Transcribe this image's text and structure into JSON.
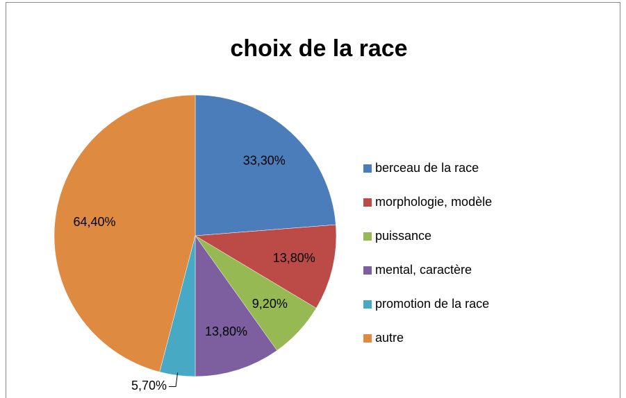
{
  "chart_data": {
    "type": "pie",
    "title": "choix de la race",
    "categories": [
      "berceau de la race",
      "morphologie, modèle",
      "puissance",
      "mental, caractère",
      "promotion de la race",
      "autre"
    ],
    "values": [
      33.3,
      13.8,
      9.2,
      13.8,
      5.7,
      64.4
    ],
    "value_labels": [
      "33,30%",
      "13,80%",
      "9,20%",
      "13,80%",
      "5,70%",
      "64,40%"
    ],
    "colors": [
      "#4a7dba",
      "#bc4a47",
      "#97b954",
      "#7d5f9f",
      "#47a9c4",
      "#de8a40"
    ],
    "legend": "right"
  }
}
